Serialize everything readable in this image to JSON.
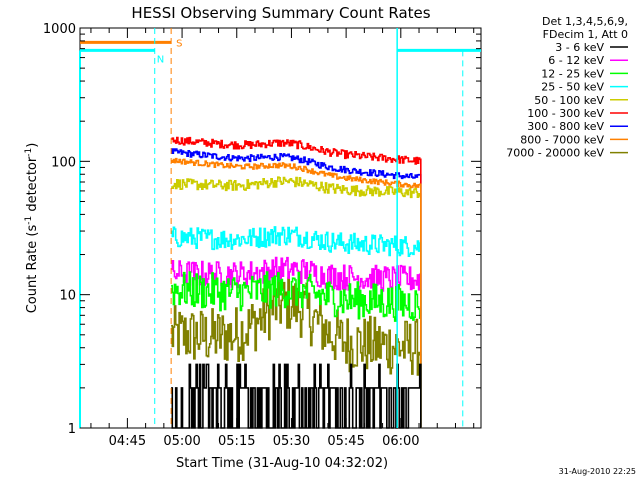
{
  "chart_data": {
    "type": "line",
    "title": "HESSI Observing Summary Count Rates",
    "xlabel": "Start Time (31-Aug-10 04:32:02)",
    "ylabel_base": "Count Rate (s",
    "ylabel_sup1": "-1",
    "ylabel_mid": " detector",
    "ylabel_sup2": "-1",
    "ylabel_end": ")",
    "y_scale": "log",
    "xlim_minutes": [
      0,
      110
    ],
    "ylim": [
      1,
      1000
    ],
    "x_ticks": [
      {
        "minute": 13,
        "label": "04:45"
      },
      {
        "minute": 28,
        "label": "05:00"
      },
      {
        "minute": 43,
        "label": "05:15"
      },
      {
        "minute": 58,
        "label": "05:30"
      },
      {
        "minute": 73,
        "label": "05:45"
      },
      {
        "minute": 88,
        "label": "06:00"
      }
    ],
    "y_ticks": [
      {
        "value": 1,
        "label": "1"
      },
      {
        "value": 10,
        "label": "10"
      },
      {
        "value": 100,
        "label": "100"
      },
      {
        "value": 1000,
        "label": "1000"
      }
    ],
    "legend_header": [
      "Det 1,3,4,5,6,9,",
      "FDecim 1, Att 0"
    ],
    "series": [
      {
        "name": "3 - 6 keV",
        "color": "#000000",
        "level_start": 2.0,
        "level_end": 2.0,
        "noise": 0.75,
        "base": 1.0
      },
      {
        "name": "6 - 12 keV",
        "color": "#ff00ff",
        "level_start": 14.5,
        "level_end": 13.0,
        "noise": 0.1
      },
      {
        "name": "12 - 25 keV",
        "color": "#00ff00",
        "level_start": 11.0,
        "level_end": 8.5,
        "noise": 0.14
      },
      {
        "name": "25 - 50 keV",
        "color": "#00ffff",
        "level_start": 27.0,
        "level_end": 23.0,
        "noise": 0.08
      },
      {
        "name": "50 - 100 keV",
        "color": "#cccc00",
        "level_start": 68.0,
        "level_end": 58.0,
        "noise": 0.04
      },
      {
        "name": "100 - 300 keV",
        "color": "#ff0000",
        "level_start": 145.0,
        "level_end": 100.0,
        "noise": 0.03
      },
      {
        "name": "300 - 800 keV",
        "color": "#0000ff",
        "level_start": 118.0,
        "level_end": 75.0,
        "noise": 0.025
      },
      {
        "name": "800 - 7000 keV",
        "color": "#ff8000",
        "level_start": 102.0,
        "level_end": 65.0,
        "noise": 0.02
      },
      {
        "name": "7000 - 20000 keV",
        "color": "#808000",
        "level_start": 5.0,
        "level_end": 4.0,
        "noise": 0.22
      }
    ],
    "data_interval_minutes": [
      25.0,
      93.5
    ],
    "hump_center_minute": 57,
    "hump_width_minutes": 9,
    "saa_flag": {
      "label": "S",
      "color": "#ff8000",
      "start_minute": 0,
      "end_minute": 25,
      "value": 780,
      "dashed_at_minute": 25
    },
    "night_flag": {
      "label": "N",
      "color": "#00ffff",
      "intervals": [
        [
          0,
          20.5
        ],
        [
          87,
          110
        ]
      ],
      "value": 680,
      "dashed_at_minute": 20.5,
      "solid_at_minute": 87,
      "dashed_end_minute": 105
    },
    "footer_date": "31-Aug-2010 22:25"
  }
}
